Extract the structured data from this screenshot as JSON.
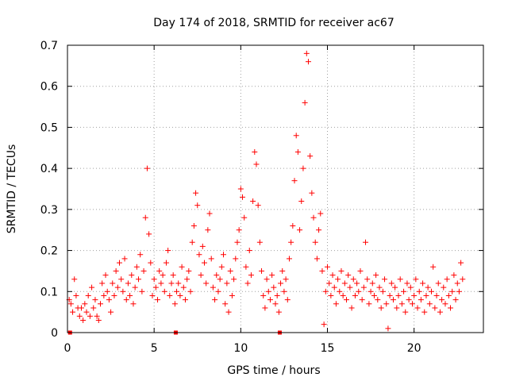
{
  "chart_data": {
    "type": "scatter",
    "title": "Day 174 of 2018, SRMTID for receiver ac67",
    "xlabel": "GPS time / hours",
    "ylabel": "SRMTID / TECUs",
    "xlim": [
      0,
      24
    ],
    "ylim": [
      0,
      0.7
    ],
    "xticks": [
      0,
      5,
      10,
      15,
      20
    ],
    "yticks": [
      0,
      0.1,
      0.2,
      0.3,
      0.4,
      0.5,
      0.6,
      0.7
    ],
    "xtick_labels": [
      "0",
      "5",
      "10",
      "15",
      "20"
    ],
    "ytick_labels": [
      "0",
      "0.1",
      "0.2",
      "0.3",
      "0.4",
      "0.5",
      "0.6",
      "0.7"
    ],
    "grid": true,
    "marker": "+",
    "color": "#ff0000",
    "series": [
      {
        "name": "SRMTID",
        "points": [
          [
            0.1,
            0.08
          ],
          [
            0.2,
            0.07
          ],
          [
            0.3,
            0.05
          ],
          [
            0.4,
            0.13
          ],
          [
            0.5,
            0.09
          ],
          [
            0.6,
            0.06
          ],
          [
            0.7,
            0.04
          ],
          [
            0.8,
            0.06
          ],
          [
            0.9,
            0.03
          ],
          [
            1.0,
            0.07
          ],
          [
            1.1,
            0.05
          ],
          [
            1.2,
            0.09
          ],
          [
            1.3,
            0.04
          ],
          [
            1.4,
            0.11
          ],
          [
            1.5,
            0.06
          ],
          [
            1.6,
            0.08
          ],
          [
            1.7,
            0.04
          ],
          [
            1.8,
            0.03
          ],
          [
            1.9,
            0.07
          ],
          [
            2.0,
            0.12
          ],
          [
            2.1,
            0.09
          ],
          [
            2.2,
            0.14
          ],
          [
            2.3,
            0.1
          ],
          [
            2.4,
            0.08
          ],
          [
            2.5,
            0.05
          ],
          [
            2.6,
            0.12
          ],
          [
            2.7,
            0.09
          ],
          [
            2.8,
            0.15
          ],
          [
            2.9,
            0.11
          ],
          [
            3.0,
            0.17
          ],
          [
            3.1,
            0.13
          ],
          [
            3.2,
            0.1
          ],
          [
            3.3,
            0.18
          ],
          [
            3.4,
            0.08
          ],
          [
            3.5,
            0.12
          ],
          [
            3.6,
            0.09
          ],
          [
            3.7,
            0.14
          ],
          [
            3.8,
            0.07
          ],
          [
            3.9,
            0.11
          ],
          [
            4.0,
            0.16
          ],
          [
            4.1,
            0.13
          ],
          [
            4.2,
            0.19
          ],
          [
            4.3,
            0.1
          ],
          [
            4.4,
            0.15
          ],
          [
            4.5,
            0.28
          ],
          [
            4.6,
            0.4
          ],
          [
            4.7,
            0.24
          ],
          [
            4.8,
            0.17
          ],
          [
            4.9,
            0.09
          ],
          [
            5.0,
            0.13
          ],
          [
            5.1,
            0.11
          ],
          [
            5.2,
            0.08
          ],
          [
            5.3,
            0.15
          ],
          [
            5.4,
            0.12
          ],
          [
            5.5,
            0.14
          ],
          [
            5.6,
            0.1
          ],
          [
            5.7,
            0.17
          ],
          [
            5.8,
            0.2
          ],
          [
            5.9,
            0.09
          ],
          [
            6.0,
            0.12
          ],
          [
            6.1,
            0.14
          ],
          [
            6.2,
            0.07
          ],
          [
            6.3,
            0.1
          ],
          [
            6.4,
            0.12
          ],
          [
            6.5,
            0.09
          ],
          [
            6.6,
            0.16
          ],
          [
            6.7,
            0.11
          ],
          [
            6.8,
            0.08
          ],
          [
            6.9,
            0.13
          ],
          [
            7.0,
            0.15
          ],
          [
            7.1,
            0.1
          ],
          [
            7.2,
            0.22
          ],
          [
            7.3,
            0.26
          ],
          [
            7.4,
            0.34
          ],
          [
            7.5,
            0.31
          ],
          [
            7.6,
            0.19
          ],
          [
            7.7,
            0.14
          ],
          [
            7.8,
            0.21
          ],
          [
            7.9,
            0.17
          ],
          [
            8.0,
            0.12
          ],
          [
            8.1,
            0.25
          ],
          [
            8.2,
            0.29
          ],
          [
            8.3,
            0.18
          ],
          [
            8.4,
            0.11
          ],
          [
            8.5,
            0.08
          ],
          [
            8.6,
            0.14
          ],
          [
            8.7,
            0.1
          ],
          [
            8.8,
            0.13
          ],
          [
            8.9,
            0.16
          ],
          [
            9.0,
            0.19
          ],
          [
            9.1,
            0.07
          ],
          [
            9.2,
            0.12
          ],
          [
            9.3,
            0.05
          ],
          [
            9.4,
            0.15
          ],
          [
            9.5,
            0.09
          ],
          [
            9.6,
            0.13
          ],
          [
            9.7,
            0.18
          ],
          [
            9.8,
            0.22
          ],
          [
            9.9,
            0.25
          ],
          [
            10.0,
            0.35
          ],
          [
            10.1,
            0.33
          ],
          [
            10.2,
            0.28
          ],
          [
            10.3,
            0.16
          ],
          [
            10.4,
            0.12
          ],
          [
            10.5,
            0.2
          ],
          [
            10.6,
            0.14
          ],
          [
            10.7,
            0.32
          ],
          [
            10.8,
            0.44
          ],
          [
            10.9,
            0.41
          ],
          [
            11.0,
            0.31
          ],
          [
            11.1,
            0.22
          ],
          [
            11.2,
            0.15
          ],
          [
            11.3,
            0.09
          ],
          [
            11.4,
            0.06
          ],
          [
            11.5,
            0.13
          ],
          [
            11.6,
            0.1
          ],
          [
            11.7,
            0.08
          ],
          [
            11.8,
            0.14
          ],
          [
            11.9,
            0.11
          ],
          [
            12.0,
            0.07
          ],
          [
            12.1,
            0.09
          ],
          [
            12.2,
            0.05
          ],
          [
            12.3,
            0.12
          ],
          [
            12.4,
            0.15
          ],
          [
            12.5,
            0.1
          ],
          [
            12.6,
            0.13
          ],
          [
            12.7,
            0.08
          ],
          [
            12.8,
            0.18
          ],
          [
            12.9,
            0.22
          ],
          [
            13.0,
            0.26
          ],
          [
            13.1,
            0.37
          ],
          [
            13.2,
            0.48
          ],
          [
            13.3,
            0.44
          ],
          [
            13.4,
            0.25
          ],
          [
            13.5,
            0.32
          ],
          [
            13.6,
            0.4
          ],
          [
            13.7,
            0.56
          ],
          [
            13.8,
            0.68
          ],
          [
            13.9,
            0.66
          ],
          [
            14.0,
            0.43
          ],
          [
            14.1,
            0.34
          ],
          [
            14.2,
            0.28
          ],
          [
            14.3,
            0.22
          ],
          [
            14.4,
            0.18
          ],
          [
            14.5,
            0.25
          ],
          [
            14.6,
            0.29
          ],
          [
            14.7,
            0.15
          ],
          [
            14.8,
            0.02
          ],
          [
            14.9,
            0.1
          ],
          [
            15.0,
            0.16
          ],
          [
            15.1,
            0.12
          ],
          [
            15.2,
            0.09
          ],
          [
            15.3,
            0.14
          ],
          [
            15.4,
            0.11
          ],
          [
            15.5,
            0.07
          ],
          [
            15.6,
            0.13
          ],
          [
            15.7,
            0.1
          ],
          [
            15.8,
            0.15
          ],
          [
            15.9,
            0.09
          ],
          [
            16.0,
            0.12
          ],
          [
            16.1,
            0.08
          ],
          [
            16.2,
            0.14
          ],
          [
            16.3,
            0.11
          ],
          [
            16.4,
            0.06
          ],
          [
            16.5,
            0.13
          ],
          [
            16.6,
            0.09
          ],
          [
            16.7,
            0.12
          ],
          [
            16.8,
            0.1
          ],
          [
            16.9,
            0.15
          ],
          [
            17.0,
            0.08
          ],
          [
            17.1,
            0.11
          ],
          [
            17.2,
            0.22
          ],
          [
            17.3,
            0.13
          ],
          [
            17.4,
            0.07
          ],
          [
            17.5,
            0.1
          ],
          [
            17.6,
            0.12
          ],
          [
            17.7,
            0.09
          ],
          [
            17.8,
            0.14
          ],
          [
            17.9,
            0.08
          ],
          [
            18.0,
            0.11
          ],
          [
            18.1,
            0.06
          ],
          [
            18.2,
            0.1
          ],
          [
            18.3,
            0.13
          ],
          [
            18.4,
            0.07
          ],
          [
            18.5,
            0.01
          ],
          [
            18.6,
            0.09
          ],
          [
            18.7,
            0.12
          ],
          [
            18.8,
            0.08
          ],
          [
            18.9,
            0.11
          ],
          [
            19.0,
            0.06
          ],
          [
            19.1,
            0.09
          ],
          [
            19.2,
            0.13
          ],
          [
            19.3,
            0.07
          ],
          [
            19.4,
            0.1
          ],
          [
            19.5,
            0.05
          ],
          [
            19.6,
            0.12
          ],
          [
            19.7,
            0.08
          ],
          [
            19.8,
            0.11
          ],
          [
            19.9,
            0.07
          ],
          [
            20.0,
            0.09
          ],
          [
            20.1,
            0.13
          ],
          [
            20.2,
            0.06
          ],
          [
            20.3,
            0.1
          ],
          [
            20.4,
            0.08
          ],
          [
            20.5,
            0.12
          ],
          [
            20.6,
            0.05
          ],
          [
            20.7,
            0.09
          ],
          [
            20.8,
            0.11
          ],
          [
            20.9,
            0.07
          ],
          [
            21.0,
            0.1
          ],
          [
            21.1,
            0.16
          ],
          [
            21.2,
            0.06
          ],
          [
            21.3,
            0.09
          ],
          [
            21.4,
            0.12
          ],
          [
            21.5,
            0.05
          ],
          [
            21.6,
            0.08
          ],
          [
            21.7,
            0.11
          ],
          [
            21.8,
            0.07
          ],
          [
            21.9,
            0.13
          ],
          [
            22.0,
            0.09
          ],
          [
            22.1,
            0.06
          ],
          [
            22.2,
            0.1
          ],
          [
            22.3,
            0.14
          ],
          [
            22.4,
            0.08
          ],
          [
            22.5,
            0.12
          ],
          [
            22.6,
            0.1
          ],
          [
            22.7,
            0.17
          ],
          [
            22.8,
            0.13
          ]
        ]
      }
    ],
    "baseline_markers_x": [
      0.15,
      6.25,
      12.25
    ]
  }
}
